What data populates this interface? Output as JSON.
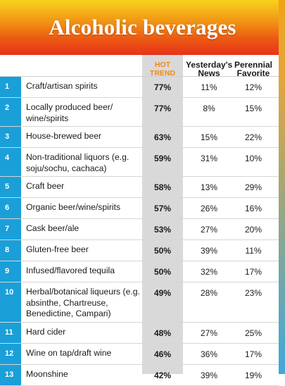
{
  "title": "Alcoholic beverages",
  "headers": {
    "hot_line1": "HOT",
    "hot_line2": "TREND",
    "yest_line1": "Yesterday's",
    "yest_line2": "News",
    "per_line1": "Perennial",
    "per_line2": "Favorite"
  },
  "colors": {
    "banner_top": "#f7d21c",
    "banner_bottom": "#e8321a",
    "number_column": "#1a9fd9",
    "hot_trend_header": "#f08a10",
    "hot_column_shading": "#d9d9d9"
  },
  "rows": [
    {
      "num": "1",
      "label": "Craft/artisan spirits",
      "hot": "77%",
      "yest": "11%",
      "per": "12%"
    },
    {
      "num": "2",
      "label": "Locally produced beer/ wine/spirits",
      "hot": "77%",
      "yest": "8%",
      "per": "15%"
    },
    {
      "num": "3",
      "label": "House-brewed beer",
      "hot": "63%",
      "yest": "15%",
      "per": "22%"
    },
    {
      "num": "4",
      "label": "Non-traditional liquors (e.g. soju/sochu, cachaca)",
      "hot": "59%",
      "yest": "31%",
      "per": "10%"
    },
    {
      "num": "5",
      "label": "Craft beer",
      "hot": "58%",
      "yest": "13%",
      "per": "29%"
    },
    {
      "num": "6",
      "label": "Organic beer/wine/spirits",
      "hot": "57%",
      "yest": "26%",
      "per": "16%"
    },
    {
      "num": "7",
      "label": "Cask beer/ale",
      "hot": "53%",
      "yest": "27%",
      "per": "20%"
    },
    {
      "num": "8",
      "label": "Gluten-free beer",
      "hot": "50%",
      "yest": "39%",
      "per": "11%"
    },
    {
      "num": "9",
      "label": "Infused/flavored tequila",
      "hot": "50%",
      "yest": "32%",
      "per": "17%"
    },
    {
      "num": "10",
      "label": "Herbal/botanical liqueurs (e.g. absinthe, Chartreuse, Benedictine, Campari)",
      "hot": "49%",
      "yest": "28%",
      "per": "23%"
    },
    {
      "num": "11",
      "label": "Hard cider",
      "hot": "48%",
      "yest": "27%",
      "per": "25%"
    },
    {
      "num": "12",
      "label": "Wine on tap/draft wine",
      "hot": "46%",
      "yest": "36%",
      "per": "17%"
    },
    {
      "num": "13",
      "label": "Moonshine",
      "hot": "42%",
      "yest": "39%",
      "per": "19%"
    }
  ]
}
